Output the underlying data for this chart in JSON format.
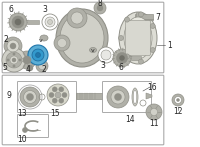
{
  "bg_color": "#ffffff",
  "part_color": "#c8c8c0",
  "dark_part": "#909088",
  "mid_part": "#b0b0a8",
  "highlight_color": "#5baed6",
  "white": "#ffffff",
  "gray_bg": "#e8e8e4",
  "box_edge": "#999999",
  "label_fontsize": 5.5,
  "title_fontsize": 4.5
}
